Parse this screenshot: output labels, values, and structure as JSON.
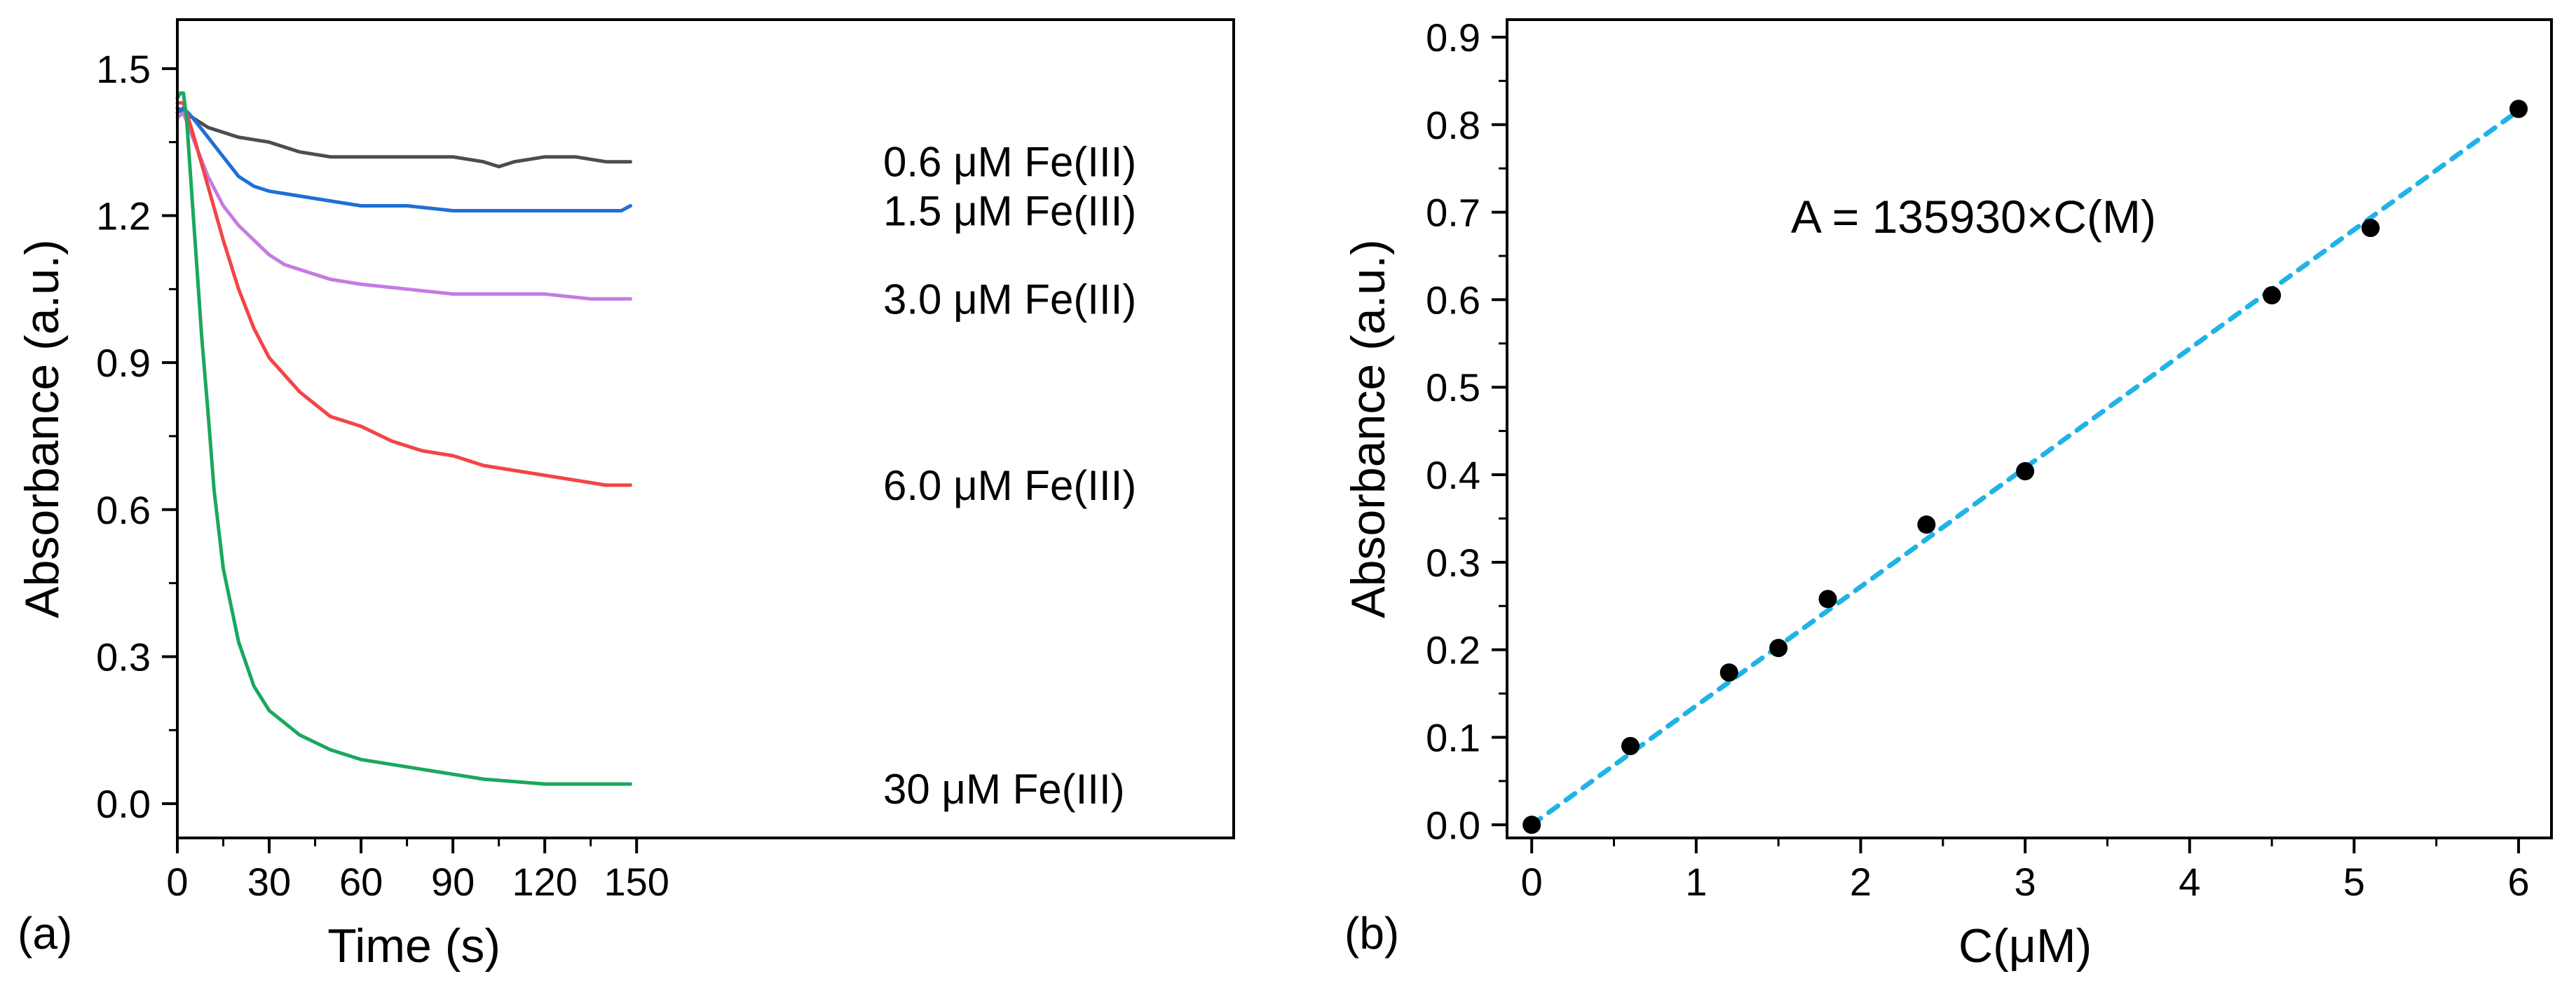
{
  "chart_data": [
    {
      "type": "line",
      "panel_label": "(a)",
      "xlabel": "Time (s)",
      "ylabel": "Absorbance (a.u.)",
      "xlim": [
        0,
        345
      ],
      "ylim": [
        -0.07,
        1.6
      ],
      "xticks": [
        0,
        30,
        60,
        90,
        120,
        150
      ],
      "xtick_labels": [
        "0",
        "30",
        "60",
        "90",
        "120",
        "150"
      ],
      "yticks": [
        0.0,
        0.3,
        0.6,
        0.9,
        1.2,
        1.5
      ],
      "ytick_labels": [
        "0.0",
        "0.3",
        "0.6",
        "0.9",
        "1.2",
        "1.5"
      ],
      "grid": false,
      "series": [
        {
          "name": "0.6 μM Fe(III)",
          "color": "#4d4d4d",
          "x": [
            0,
            2,
            5,
            10,
            20,
            30,
            40,
            50,
            60,
            70,
            80,
            90,
            100,
            105,
            110,
            120,
            130,
            140,
            148
          ],
          "y": [
            1.42,
            1.41,
            1.4,
            1.38,
            1.36,
            1.35,
            1.33,
            1.32,
            1.32,
            1.32,
            1.32,
            1.32,
            1.31,
            1.3,
            1.31,
            1.32,
            1.32,
            1.31,
            1.31
          ]
        },
        {
          "name": "1.5 μM Fe(III)",
          "color": "#1f6fd6",
          "x": [
            0,
            2,
            5,
            10,
            15,
            20,
            25,
            30,
            40,
            50,
            60,
            75,
            90,
            105,
            120,
            135,
            145,
            148
          ],
          "y": [
            1.41,
            1.42,
            1.4,
            1.36,
            1.32,
            1.28,
            1.26,
            1.25,
            1.24,
            1.23,
            1.22,
            1.22,
            1.21,
            1.21,
            1.21,
            1.21,
            1.21,
            1.22
          ]
        },
        {
          "name": "3.0 μM Fe(III)",
          "color": "#c57be0",
          "x": [
            0,
            2,
            5,
            10,
            15,
            20,
            25,
            30,
            35,
            40,
            50,
            60,
            75,
            90,
            105,
            120,
            135,
            148
          ],
          "y": [
            1.4,
            1.41,
            1.36,
            1.28,
            1.22,
            1.18,
            1.15,
            1.12,
            1.1,
            1.09,
            1.07,
            1.06,
            1.05,
            1.04,
            1.04,
            1.04,
            1.03,
            1.03
          ]
        },
        {
          "name": "6.0 μM Fe(III)",
          "color": "#f24545",
          "x": [
            0,
            2,
            5,
            10,
            15,
            20,
            25,
            30,
            40,
            50,
            60,
            70,
            80,
            90,
            100,
            110,
            120,
            130,
            140,
            148
          ],
          "y": [
            1.43,
            1.43,
            1.37,
            1.26,
            1.15,
            1.05,
            0.97,
            0.91,
            0.84,
            0.79,
            0.77,
            0.74,
            0.72,
            0.71,
            0.69,
            0.68,
            0.67,
            0.66,
            0.65,
            0.65
          ]
        },
        {
          "name": "30 μM Fe(III)",
          "color": "#1aa85d",
          "x": [
            0,
            1,
            2,
            3,
            5,
            8,
            10,
            12,
            15,
            20,
            25,
            30,
            40,
            50,
            60,
            80,
            100,
            120,
            140,
            148
          ],
          "y": [
            1.44,
            1.45,
            1.45,
            1.4,
            1.22,
            0.95,
            0.8,
            0.64,
            0.48,
            0.33,
            0.24,
            0.19,
            0.14,
            0.11,
            0.09,
            0.07,
            0.05,
            0.04,
            0.04,
            0.04
          ]
        }
      ]
    },
    {
      "type": "scatter",
      "panel_label": "(b)",
      "xlabel": "C(μM)",
      "ylabel": "Absorbance (a.u.)",
      "xlim": [
        -0.15,
        6.2
      ],
      "ylim": [
        -0.015,
        0.92
      ],
      "xticks": [
        0,
        1,
        2,
        3,
        4,
        5,
        6
      ],
      "xtick_labels": [
        "0",
        "1",
        "2",
        "3",
        "4",
        "5",
        "6"
      ],
      "yticks": [
        0.0,
        0.1,
        0.2,
        0.3,
        0.4,
        0.5,
        0.6,
        0.7,
        0.8,
        0.9
      ],
      "ytick_labels": [
        "0.0",
        "0.1",
        "0.2",
        "0.3",
        "0.4",
        "0.5",
        "0.6",
        "0.7",
        "0.8",
        "0.9"
      ],
      "grid": false,
      "annotation": "A = 135930×C(M)",
      "x": [
        0,
        0.6,
        1.2,
        1.5,
        1.8,
        2.4,
        3.0,
        4.5,
        5.1,
        6.0
      ],
      "y": [
        0.0,
        0.09,
        0.174,
        0.202,
        0.258,
        0.343,
        0.404,
        0.605,
        0.682,
        0.818
      ],
      "fit": {
        "x": [
          0,
          6.0
        ],
        "y": [
          0.0,
          0.816
        ],
        "color": "#1fb3e6"
      },
      "point_color": "#000000"
    }
  ]
}
